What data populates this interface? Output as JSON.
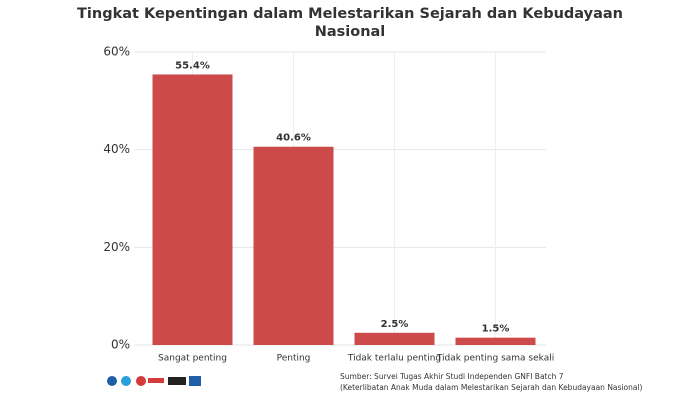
{
  "chart_data": {
    "type": "bar",
    "title": [
      "Tingkat Kepentingan dalam Melestarikan Sejarah dan Kebudayaan",
      "Nasional"
    ],
    "categories": [
      "Sangat penting",
      "Penting",
      "Tidak terlalu penting",
      "Tidak penting sama sekali"
    ],
    "values": [
      55.4,
      40.6,
      2.5,
      1.5
    ],
    "value_labels": [
      "55.4%",
      "40.6%",
      "2.5%",
      "1.5%"
    ],
    "color": "#cc4a4a",
    "ylim": [
      0,
      60
    ],
    "yticks": [
      {
        "value": 0,
        "label": "0%"
      },
      {
        "value": 20,
        "label": "20%"
      },
      {
        "value": 40,
        "label": "40%"
      },
      {
        "value": 60,
        "label": "60%"
      }
    ],
    "grid": true,
    "source": [
      "Sumber: Survei Tugas Akhir Studi Independen GNFI Batch 7",
      "(Keterlibatan Anak Muda dalam Melestarikan Sejarah dan Kebudayaan Nasional)"
    ]
  }
}
